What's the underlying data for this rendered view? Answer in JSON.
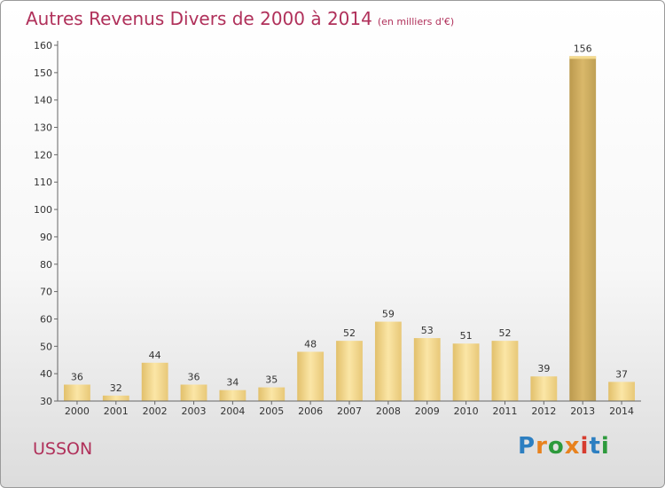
{
  "title": "Autres Revenus Divers de 2000 à 2014",
  "subtitle": "(en milliers d'€)",
  "place": "USSON",
  "logo": {
    "letters": [
      {
        "ch": "P",
        "color": "#2d7fc1"
      },
      {
        "ch": "r",
        "color": "#e8821e"
      },
      {
        "ch": "o",
        "color": "#2d9a3c"
      },
      {
        "ch": "x",
        "color": "#e8821e"
      },
      {
        "ch": "i",
        "color": "#d63c2f"
      },
      {
        "ch": "t",
        "color": "#2d7fc1"
      },
      {
        "ch": "i",
        "color": "#2d9a3c"
      }
    ]
  },
  "chart_data": {
    "type": "bar",
    "categories": [
      "2000",
      "2001",
      "2002",
      "2003",
      "2004",
      "2005",
      "2006",
      "2007",
      "2008",
      "2009",
      "2010",
      "2011",
      "2012",
      "2013",
      "2014"
    ],
    "values": [
      36,
      32,
      44,
      36,
      34,
      35,
      48,
      52,
      59,
      53,
      51,
      52,
      39,
      156,
      37
    ],
    "ylim": [
      30,
      160
    ],
    "yticks": [
      30,
      40,
      50,
      60,
      70,
      80,
      90,
      100,
      110,
      120,
      130,
      140,
      150,
      160
    ],
    "grid": false,
    "highlight_index": 13,
    "colors": {
      "bar": "#f2d48a",
      "bar_highlight": "#c9a85a",
      "axis": "#666666"
    }
  }
}
